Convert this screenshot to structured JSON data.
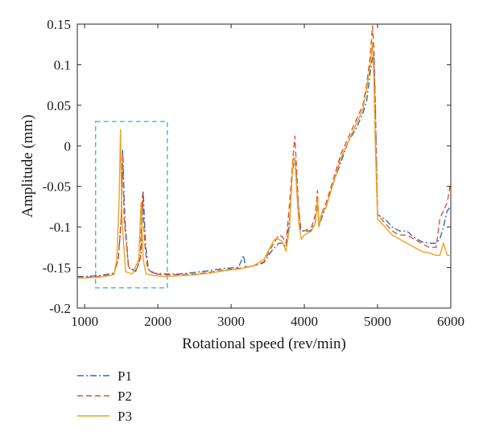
{
  "chart_data": {
    "type": "line",
    "xlabel": "Rotational speed (rev/min)",
    "ylabel": "Amplitude (mm)",
    "xlim": [
      900,
      6000
    ],
    "ylim": [
      -0.2,
      0.15
    ],
    "xticks": [
      1000,
      2000,
      3000,
      4000,
      5000,
      6000
    ],
    "xtick_labels": [
      "1000",
      "2000",
      "3000",
      "4000",
      "5000",
      "6000"
    ],
    "yticks": [
      -0.2,
      -0.15,
      -0.1,
      -0.05,
      0,
      0.05,
      0.1,
      0.15
    ],
    "ytick_labels": [
      "-0.2",
      "-0.15",
      "-0.1",
      "-0.05",
      "0",
      "0.05",
      "0.1",
      "0.15"
    ],
    "grid": false,
    "legend_position": "bottom-left, below the plot",
    "highlight_box": {
      "x": [
        1150,
        2130
      ],
      "y": [
        -0.175,
        0.03
      ],
      "color": "#3db4e0",
      "style": "dashed"
    },
    "series": [
      {
        "name": "P1",
        "color": "#2b6fb3",
        "style": "dash-dot",
        "x": [
          900,
          1000,
          1200,
          1400,
          1460,
          1500,
          1520,
          1550,
          1600,
          1700,
          1770,
          1800,
          1830,
          1870,
          1950,
          2100,
          2300,
          2500,
          2700,
          2900,
          3100,
          3170,
          3200,
          3300,
          3450,
          3550,
          3600,
          3650,
          3700,
          3750,
          3800,
          3840,
          3870,
          3890,
          3920,
          3950,
          4000,
          4080,
          4150,
          4180,
          4200,
          4230,
          4300,
          4400,
          4500,
          4600,
          4700,
          4800,
          4850,
          4900,
          4930,
          4950,
          4970,
          5000,
          5100,
          5200,
          5300,
          5400,
          5500,
          5600,
          5700,
          5800,
          5850,
          5900,
          5950,
          6000
        ],
        "y": [
          -0.161,
          -0.161,
          -0.16,
          -0.157,
          -0.14,
          -0.09,
          -0.005,
          -0.09,
          -0.15,
          -0.154,
          -0.135,
          -0.055,
          -0.12,
          -0.152,
          -0.157,
          -0.158,
          -0.158,
          -0.156,
          -0.154,
          -0.151,
          -0.15,
          -0.135,
          -0.15,
          -0.148,
          -0.144,
          -0.13,
          -0.125,
          -0.12,
          -0.12,
          -0.125,
          -0.09,
          -0.03,
          -0.015,
          -0.035,
          -0.08,
          -0.105,
          -0.105,
          -0.105,
          -0.095,
          -0.07,
          -0.1,
          -0.09,
          -0.075,
          -0.045,
          -0.02,
          0.005,
          0.02,
          0.04,
          0.055,
          0.09,
          0.11,
          0.113,
          0.05,
          -0.085,
          -0.09,
          -0.1,
          -0.105,
          -0.105,
          -0.113,
          -0.118,
          -0.12,
          -0.12,
          -0.115,
          -0.1,
          -0.08,
          -0.075
        ]
      },
      {
        "name": "P2",
        "color": "#e0542c",
        "style": "dashed",
        "x": [
          900,
          1000,
          1200,
          1400,
          1460,
          1500,
          1520,
          1540,
          1600,
          1700,
          1760,
          1790,
          1820,
          1860,
          1950,
          2100,
          2300,
          2500,
          2700,
          2900,
          3100,
          3300,
          3450,
          3550,
          3600,
          3650,
          3700,
          3750,
          3800,
          3840,
          3870,
          3890,
          3920,
          3950,
          4000,
          4100,
          4150,
          4180,
          4200,
          4230,
          4300,
          4400,
          4500,
          4600,
          4700,
          4800,
          4850,
          4900,
          4930,
          4950,
          4970,
          5000,
          5100,
          5200,
          5300,
          5400,
          5500,
          5600,
          5700,
          5800,
          5850,
          5900,
          5950,
          6000
        ],
        "y": [
          -0.162,
          -0.162,
          -0.161,
          -0.158,
          -0.14,
          -0.09,
          -0.01,
          -0.09,
          -0.15,
          -0.155,
          -0.14,
          -0.06,
          -0.12,
          -0.152,
          -0.158,
          -0.159,
          -0.159,
          -0.158,
          -0.156,
          -0.153,
          -0.151,
          -0.148,
          -0.143,
          -0.125,
          -0.118,
          -0.11,
          -0.112,
          -0.12,
          -0.07,
          -0.02,
          0.012,
          -0.02,
          -0.075,
          -0.1,
          -0.105,
          -0.1,
          -0.085,
          -0.055,
          -0.1,
          -0.085,
          -0.07,
          -0.04,
          -0.01,
          0.01,
          0.03,
          0.05,
          0.075,
          0.11,
          0.148,
          0.12,
          0.04,
          -0.085,
          -0.095,
          -0.105,
          -0.11,
          -0.11,
          -0.115,
          -0.12,
          -0.125,
          -0.125,
          -0.09,
          -0.08,
          -0.07,
          -0.045
        ]
      },
      {
        "name": "P3",
        "color": "#f0a21e",
        "style": "solid",
        "x": [
          900,
          1000,
          1200,
          1400,
          1440,
          1470,
          1490,
          1510,
          1560,
          1650,
          1740,
          1770,
          1800,
          1840,
          1950,
          2100,
          2300,
          2500,
          2700,
          2900,
          3100,
          3300,
          3450,
          3550,
          3600,
          3650,
          3700,
          3750,
          3800,
          3830,
          3850,
          3870,
          3900,
          3930,
          3960,
          4000,
          4100,
          4150,
          4180,
          4200,
          4230,
          4300,
          4400,
          4500,
          4600,
          4700,
          4800,
          4850,
          4900,
          4930,
          4950,
          4970,
          5000,
          5100,
          5200,
          5300,
          5400,
          5500,
          5600,
          5700,
          5800,
          5850,
          5900,
          5950,
          6000
        ],
        "y": [
          -0.163,
          -0.163,
          -0.162,
          -0.159,
          -0.14,
          -0.07,
          0.02,
          -0.09,
          -0.155,
          -0.158,
          -0.14,
          -0.07,
          -0.14,
          -0.158,
          -0.16,
          -0.161,
          -0.16,
          -0.159,
          -0.157,
          -0.154,
          -0.152,
          -0.148,
          -0.14,
          -0.122,
          -0.115,
          -0.115,
          -0.118,
          -0.13,
          -0.1,
          -0.04,
          -0.015,
          -0.015,
          -0.06,
          -0.1,
          -0.115,
          -0.11,
          -0.105,
          -0.095,
          -0.065,
          -0.1,
          -0.085,
          -0.075,
          -0.045,
          -0.015,
          0.005,
          0.025,
          0.045,
          0.07,
          0.1,
          0.128,
          0.08,
          0.0,
          -0.09,
          -0.1,
          -0.11,
          -0.115,
          -0.12,
          -0.125,
          -0.13,
          -0.132,
          -0.135,
          -0.135,
          -0.12,
          -0.135,
          -0.135
        ]
      }
    ]
  }
}
